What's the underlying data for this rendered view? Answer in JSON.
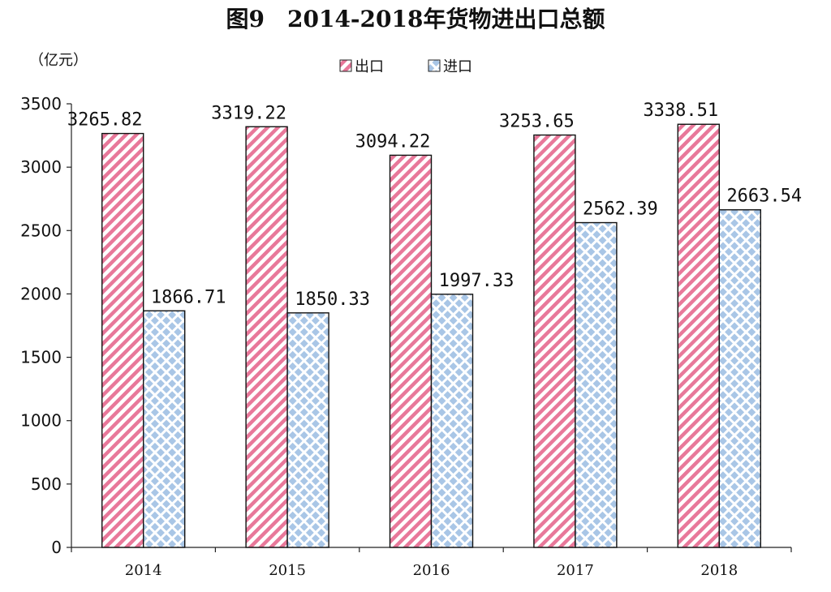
{
  "chart_data": {
    "type": "bar",
    "title": "图9　2014-2018年货物进出口总额",
    "unit_label": "（亿元）",
    "categories": [
      "2014",
      "2015",
      "2016",
      "2017",
      "2018"
    ],
    "series": [
      {
        "name": "出口",
        "values": [
          3265.82,
          3319.22,
          3094.22,
          3253.65,
          3338.51
        ],
        "labels": [
          "3265.82",
          "3319.22",
          "3094.22",
          "3253.65",
          "3338.51"
        ],
        "color": "#e8789a"
      },
      {
        "name": "进口",
        "values": [
          1866.71,
          1850.33,
          1997.33,
          2562.39,
          2663.54
        ],
        "labels": [
          "1866.71",
          "1850.33",
          "1997.33",
          "2562.39",
          "2663.54"
        ],
        "color": "#9fbfe0"
      }
    ],
    "ylim": [
      0,
      3500
    ],
    "yticks": [
      "0",
      "500",
      "1000",
      "1500",
      "2000",
      "2500",
      "3000",
      "3500"
    ],
    "grid": false,
    "legend": "top-center"
  }
}
